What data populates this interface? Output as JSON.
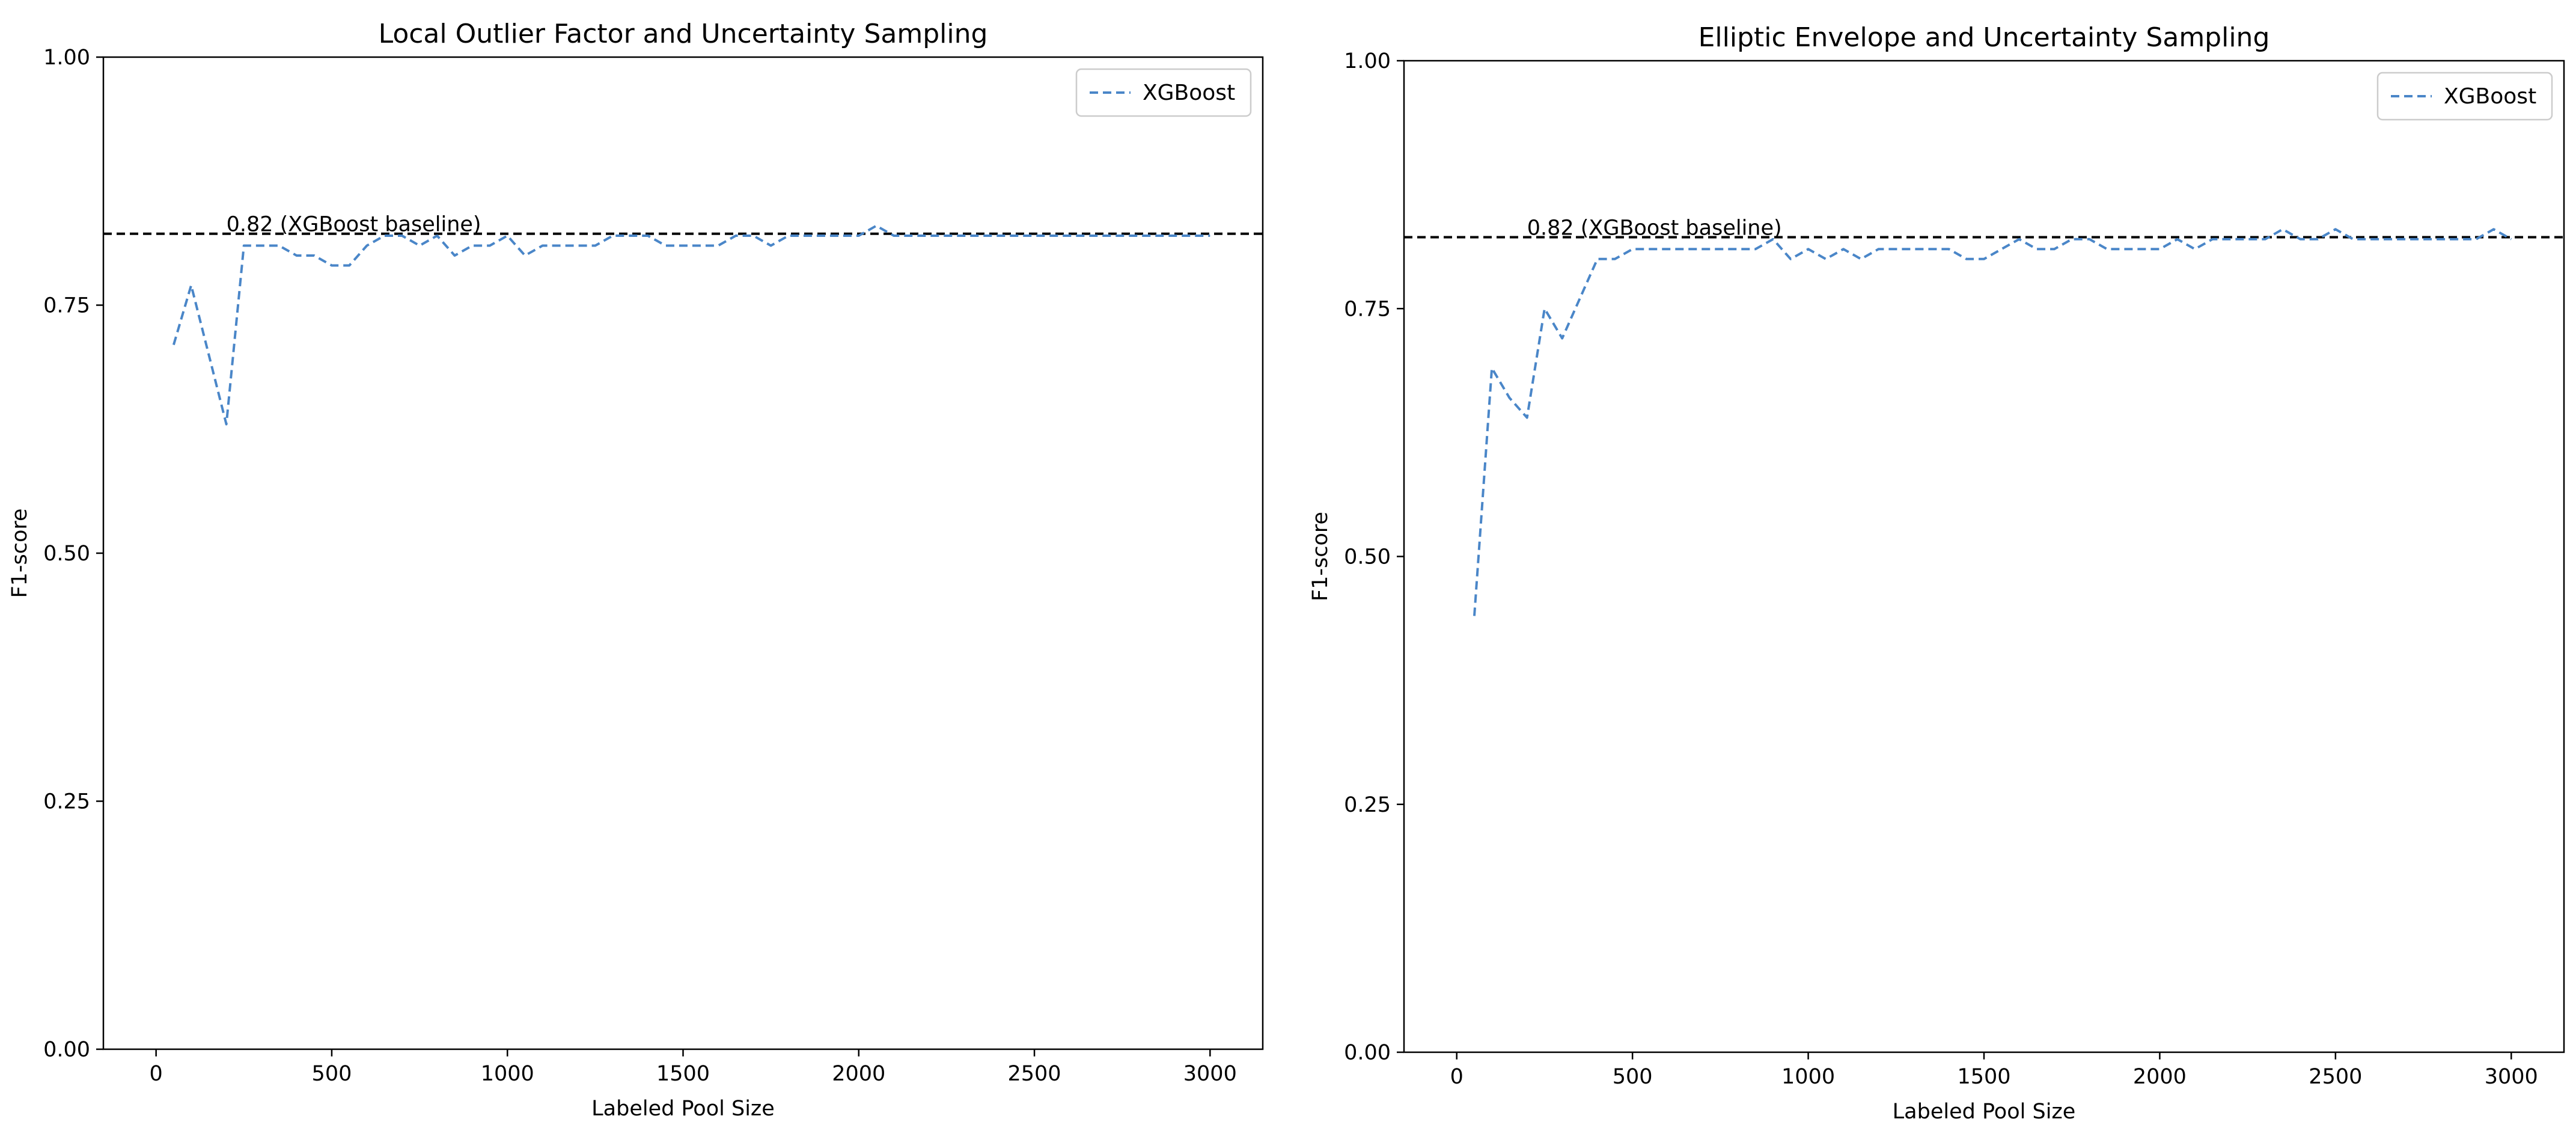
{
  "chart_data": [
    {
      "type": "line",
      "title": "Local Outlier Factor and Uncertainty Sampling",
      "xlabel": "Labeled Pool Size",
      "ylabel": "F1-score",
      "xlim": [
        -150,
        3150
      ],
      "ylim": [
        0.0,
        1.0
      ],
      "xticks": [
        0,
        500,
        1000,
        1500,
        2000,
        2500,
        3000
      ],
      "yticks": [
        0.0,
        0.25,
        0.5,
        0.75,
        1.0
      ],
      "xtick_labels": [
        "0",
        "500",
        "1000",
        "1500",
        "2000",
        "2500",
        "3000"
      ],
      "ytick_labels": [
        "0.00",
        "0.25",
        "0.50",
        "0.75",
        "1.00"
      ],
      "grid": false,
      "legend_position": "top-right",
      "baseline": {
        "value": 0.822,
        "label": "0.82 (XGBoost baseline)",
        "label_x": 200,
        "style": "dashed",
        "color": "#000000"
      },
      "series": [
        {
          "name": "XGBoost",
          "color": "#4a86c8",
          "style": "dashed",
          "x": [
            50,
            100,
            150,
            200,
            250,
            300,
            350,
            400,
            450,
            500,
            550,
            600,
            650,
            700,
            750,
            800,
            850,
            900,
            950,
            1000,
            1050,
            1100,
            1150,
            1200,
            1250,
            1300,
            1350,
            1400,
            1450,
            1500,
            1550,
            1600,
            1650,
            1700,
            1750,
            1800,
            1850,
            1900,
            1950,
            2000,
            2050,
            2100,
            2150,
            2200,
            2250,
            2300,
            2350,
            2400,
            2450,
            2500,
            2550,
            2600,
            2650,
            2700,
            2750,
            2800,
            2850,
            2900,
            2950,
            3000
          ],
          "y": [
            0.71,
            0.77,
            0.7,
            0.63,
            0.81,
            0.81,
            0.81,
            0.8,
            0.8,
            0.79,
            0.79,
            0.81,
            0.82,
            0.82,
            0.81,
            0.82,
            0.8,
            0.81,
            0.81,
            0.82,
            0.8,
            0.81,
            0.81,
            0.81,
            0.81,
            0.82,
            0.82,
            0.82,
            0.81,
            0.81,
            0.81,
            0.81,
            0.82,
            0.82,
            0.81,
            0.82,
            0.82,
            0.82,
            0.82,
            0.82,
            0.83,
            0.82,
            0.82,
            0.82,
            0.82,
            0.82,
            0.82,
            0.82,
            0.82,
            0.82,
            0.82,
            0.82,
            0.82,
            0.82,
            0.82,
            0.82,
            0.82,
            0.82,
            0.82,
            0.82
          ]
        }
      ]
    },
    {
      "type": "line",
      "title": "Elliptic Envelope and Uncertainty Sampling",
      "xlabel": "Labeled Pool Size",
      "ylabel": "F1-score",
      "xlim": [
        -150,
        3150
      ],
      "ylim": [
        0.0,
        1.0
      ],
      "xticks": [
        0,
        500,
        1000,
        1500,
        2000,
        2500,
        3000
      ],
      "yticks": [
        0.0,
        0.25,
        0.5,
        0.75,
        1.0
      ],
      "xtick_labels": [
        "0",
        "500",
        "1000",
        "1500",
        "2000",
        "2500",
        "3000"
      ],
      "ytick_labels": [
        "0.00",
        "0.25",
        "0.50",
        "0.75",
        "1.00"
      ],
      "grid": false,
      "legend_position": "top-right",
      "baseline": {
        "value": 0.822,
        "label": "0.82 (XGBoost baseline)",
        "label_x": 200,
        "style": "dashed",
        "color": "#000000"
      },
      "series": [
        {
          "name": "XGBoost",
          "color": "#4a86c8",
          "style": "dashed",
          "x": [
            50,
            100,
            150,
            200,
            250,
            300,
            350,
            400,
            450,
            500,
            550,
            600,
            650,
            700,
            750,
            800,
            850,
            900,
            950,
            1000,
            1050,
            1100,
            1150,
            1200,
            1250,
            1300,
            1350,
            1400,
            1450,
            1500,
            1550,
            1600,
            1650,
            1700,
            1750,
            1800,
            1850,
            1900,
            1950,
            2000,
            2050,
            2100,
            2150,
            2200,
            2250,
            2300,
            2350,
            2400,
            2450,
            2500,
            2550,
            2600,
            2650,
            2700,
            2750,
            2800,
            2850,
            2900,
            2950,
            3000
          ],
          "y": [
            0.44,
            0.69,
            0.66,
            0.64,
            0.75,
            0.72,
            0.76,
            0.8,
            0.8,
            0.81,
            0.81,
            0.81,
            0.81,
            0.81,
            0.81,
            0.81,
            0.81,
            0.82,
            0.8,
            0.81,
            0.8,
            0.81,
            0.8,
            0.81,
            0.81,
            0.81,
            0.81,
            0.81,
            0.8,
            0.8,
            0.81,
            0.82,
            0.81,
            0.81,
            0.82,
            0.82,
            0.81,
            0.81,
            0.81,
            0.81,
            0.82,
            0.81,
            0.82,
            0.82,
            0.82,
            0.82,
            0.83,
            0.82,
            0.82,
            0.83,
            0.82,
            0.82,
            0.82,
            0.82,
            0.82,
            0.82,
            0.82,
            0.82,
            0.83,
            0.82
          ]
        }
      ]
    }
  ]
}
